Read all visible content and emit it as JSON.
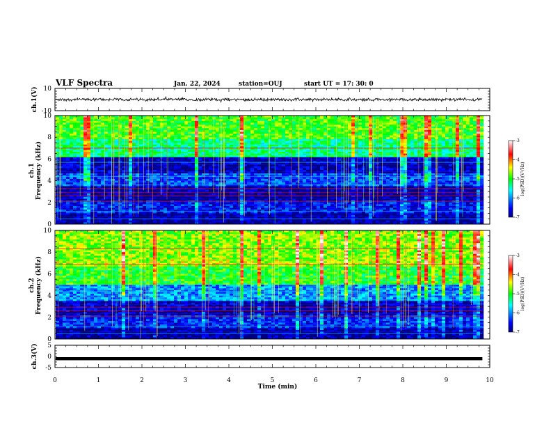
{
  "header": {
    "title": "VLF Spectra",
    "date": "Jan. 22, 2024",
    "station": "station=OUJ",
    "start": "start UT =  17: 30: 0"
  },
  "chart_data": [
    {
      "type": "line",
      "panel": "ch1-waveform",
      "ylabel": "ch.1(V)",
      "ylim": [
        -10,
        10
      ],
      "yticks": [
        "10",
        "-10"
      ],
      "xlim": [
        0,
        10
      ],
      "trace_range_V": [
        -1.5,
        1.5
      ]
    },
    {
      "type": "heatmap",
      "panel": "ch1-spectrogram",
      "ylabel": "ch.1\nFrequency (kHz)",
      "ylim": [
        0,
        10
      ],
      "yticks": [
        "0",
        "2",
        "4",
        "6",
        "8",
        "10"
      ],
      "xlim": [
        0,
        10
      ],
      "data_xmax": 9.83,
      "colorbar": {
        "label": "log(PSD)(V²/Hz)",
        "ticks": [
          "-3",
          "-4",
          "-5",
          "-6",
          "-7"
        ],
        "range": [
          -7,
          -3
        ]
      },
      "bands": [
        {
          "f": [
            0.2,
            1.0
          ],
          "level": -6.9
        },
        {
          "f": [
            1.0,
            2.2
          ],
          "level": -6.5
        },
        {
          "f": [
            2.2,
            3.5
          ],
          "level": -6.9
        },
        {
          "f": [
            3.5,
            4.6
          ],
          "level": -6.3
        },
        {
          "f": [
            4.6,
            6.2
          ],
          "level": -6.8
        },
        {
          "f": [
            6.2,
            7.8
          ],
          "level": -5.3
        },
        {
          "f": [
            7.8,
            10.0
          ],
          "level": -4.9
        }
      ],
      "hot_lines_kHz": [
        2.1,
        2.6,
        2.9,
        3.3,
        7.0
      ],
      "cold_lines_kHz": [
        0.5,
        1.2,
        3.6,
        4.4,
        5.7
      ]
    },
    {
      "type": "heatmap",
      "panel": "ch2-spectrogram",
      "ylabel": "ch.2\nFrequency (kHz)",
      "ylim": [
        0,
        10
      ],
      "yticks": [
        "0",
        "2",
        "4",
        "6",
        "8",
        "10"
      ],
      "xlim": [
        0,
        10
      ],
      "data_xmax": 9.83,
      "colorbar": {
        "label": "log(PSD)(V²/Hz)",
        "ticks": [
          "-3",
          "-4",
          "-5",
          "-6",
          "-7"
        ],
        "range": [
          -7,
          -3
        ]
      },
      "bands": [
        {
          "f": [
            0.2,
            1.0
          ],
          "level": -6.9
        },
        {
          "f": [
            1.0,
            2.2
          ],
          "level": -6.4
        },
        {
          "f": [
            2.2,
            3.5
          ],
          "level": -6.8
        },
        {
          "f": [
            3.5,
            5.0
          ],
          "level": -6.0
        },
        {
          "f": [
            5.0,
            6.6
          ],
          "level": -5.0
        },
        {
          "f": [
            6.6,
            7.4
          ],
          "level": -4.6
        },
        {
          "f": [
            7.4,
            10.0
          ],
          "level": -4.7
        }
      ],
      "hot_lines_kHz": [
        2.1,
        2.6,
        2.9,
        6.9,
        8.3
      ],
      "cold_lines_kHz": [
        0.5,
        1.2,
        3.6,
        4.4
      ]
    },
    {
      "type": "line",
      "panel": "ch3-waveform",
      "ylabel": "ch.3(V)",
      "ylim": [
        -5,
        5
      ],
      "yticks": [
        "5",
        "0",
        "-5"
      ],
      "xlim": [
        0,
        10
      ],
      "trace_value_V": -1.0,
      "xlabel": "Time (min)",
      "xticks": [
        "0",
        "1",
        "2",
        "3",
        "4",
        "5",
        "6",
        "7",
        "8",
        "9",
        "10"
      ]
    }
  ]
}
